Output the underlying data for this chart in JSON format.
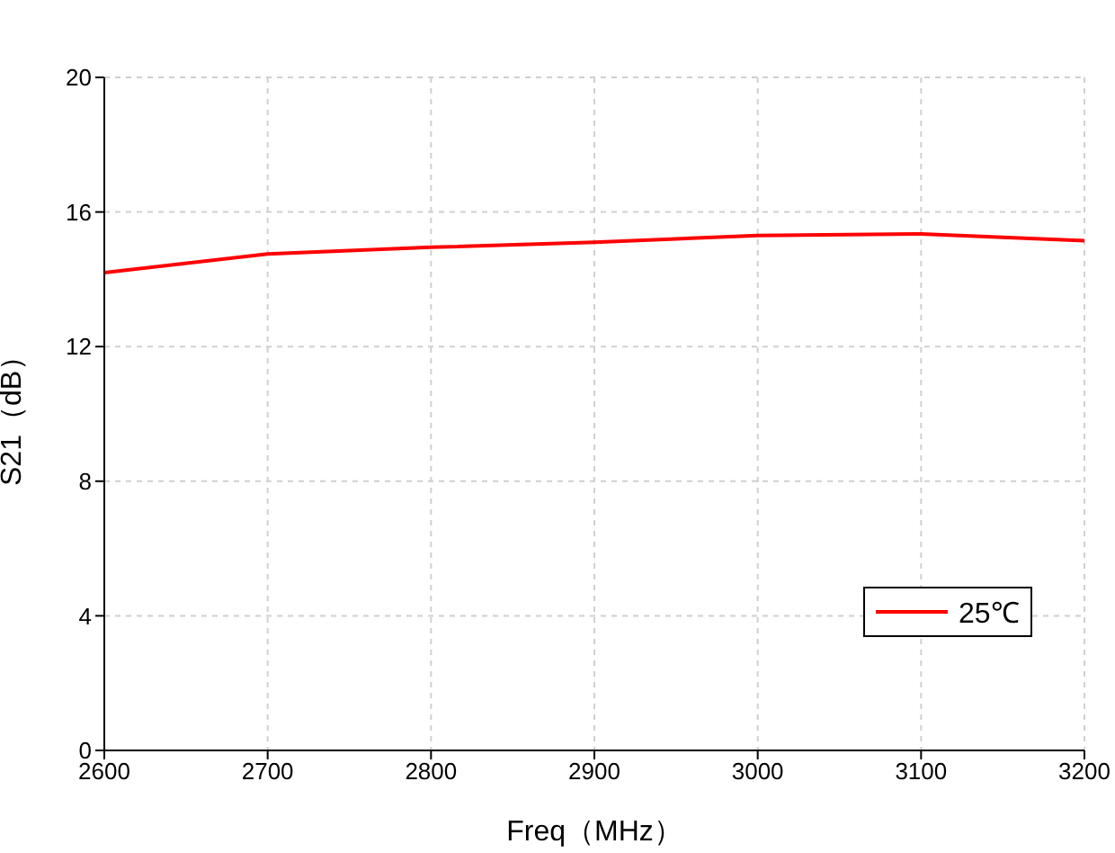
{
  "chart_data": {
    "type": "line",
    "xlabel": "Freq（MHz）",
    "ylabel": "S21（dB）",
    "x": [
      2600,
      2700,
      2800,
      2900,
      3000,
      3100,
      3200
    ],
    "series": [
      {
        "name": "25℃",
        "color": "#ff0000",
        "values": [
          14.2,
          14.75,
          14.95,
          15.1,
          15.3,
          15.35,
          15.15
        ]
      }
    ],
    "xlim": [
      2600,
      3200
    ],
    "xticks": [
      2600,
      2700,
      2800,
      2900,
      3000,
      3100,
      3200
    ],
    "ylim": [
      0,
      20
    ],
    "yticks": [
      0,
      4,
      8,
      12,
      16,
      20
    ],
    "grid": true,
    "legend": "bottom right",
    "marker": "none",
    "line_style": "solid"
  }
}
